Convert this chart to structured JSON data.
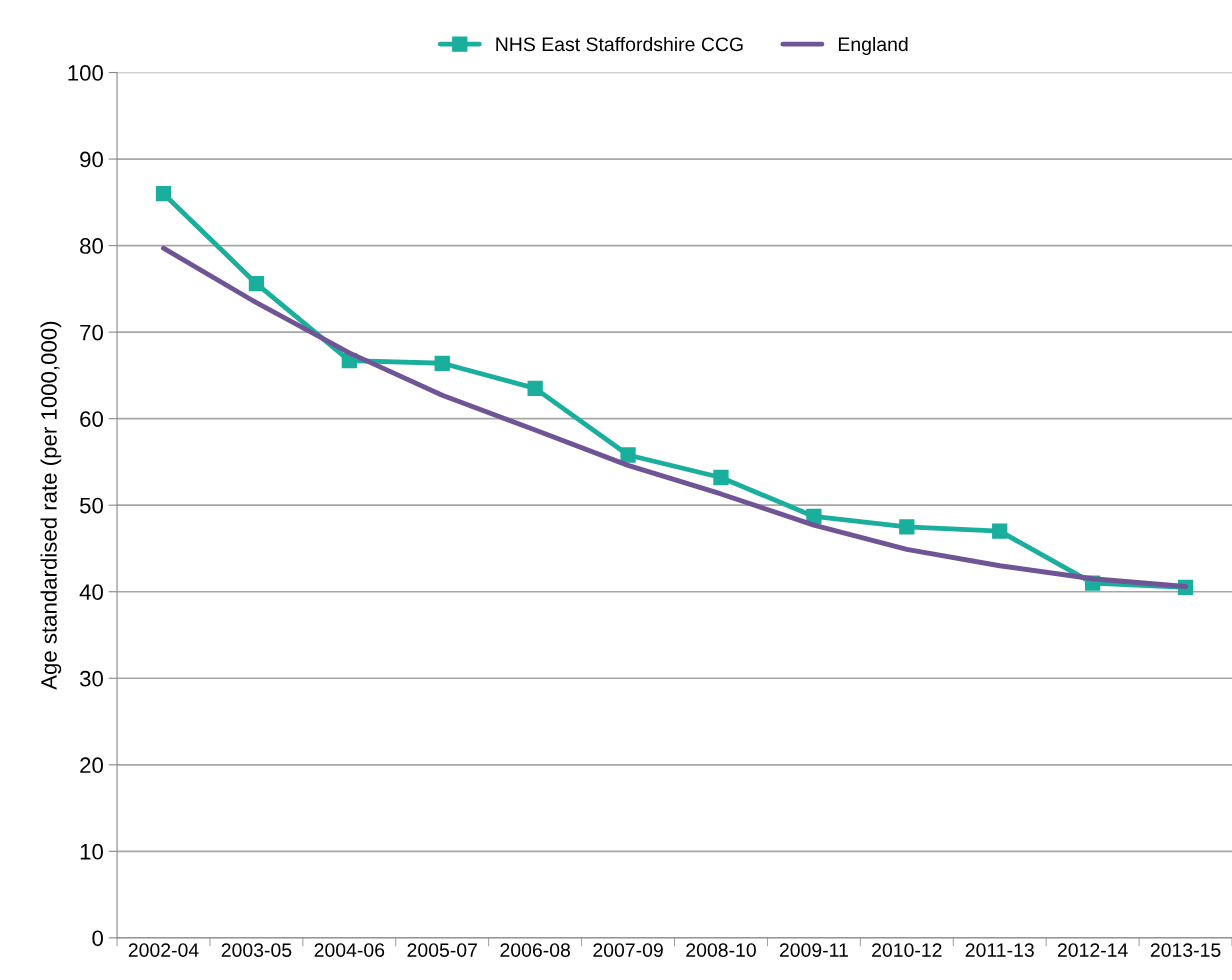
{
  "chart_data": {
    "type": "line",
    "ylabel": "Age standardised rate (per 1000,000)",
    "categories": [
      "2002-04",
      "2003-05",
      "2004-06",
      "2005-07",
      "2006-08",
      "2007-09",
      "2008-10",
      "2009-11",
      "2010-12",
      "2011-13",
      "2012-14",
      "2013-15"
    ],
    "series": [
      {
        "name": "NHS East Staffordshire CCG",
        "color": "#1aaf9c",
        "marker": "square",
        "values": [
          86.0,
          75.6,
          66.7,
          66.4,
          63.5,
          55.8,
          53.2,
          48.7,
          47.5,
          47.0,
          41.0,
          40.5
        ]
      },
      {
        "name": "England",
        "color": "#6f5596",
        "marker": "none",
        "values": [
          79.7,
          73.4,
          67.6,
          62.7,
          58.7,
          54.6,
          51.3,
          47.7,
          44.9,
          43.0,
          41.5,
          40.6
        ]
      }
    ],
    "ylim": [
      0,
      100
    ],
    "yticks": [
      0,
      10,
      20,
      30,
      40,
      50,
      60,
      70,
      80,
      90,
      100
    ],
    "grid": "y",
    "legend": "top"
  }
}
